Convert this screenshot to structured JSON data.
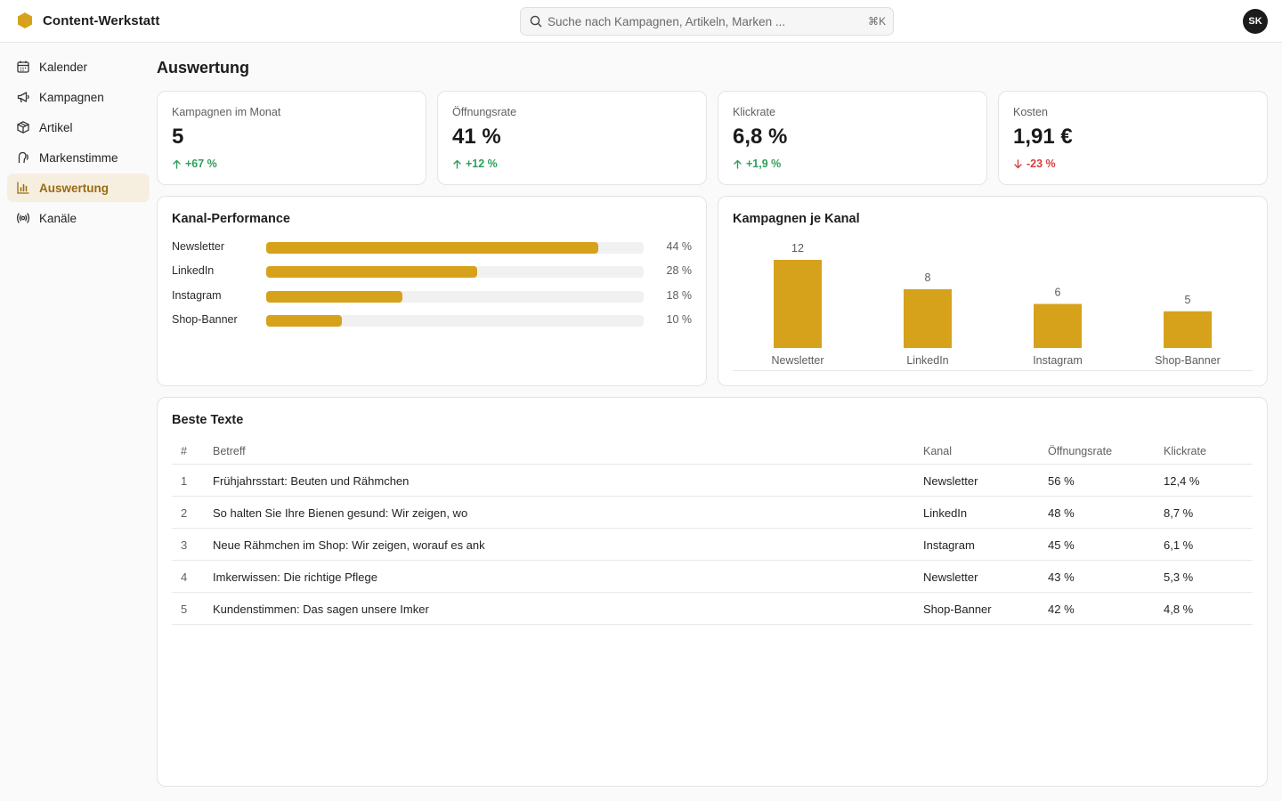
{
  "app": {
    "name": "Content-Werkstatt",
    "brand_color": "#d6a21c"
  },
  "search": {
    "placeholder": "Suche nach Kampagnen, Artikeln, Marken ...",
    "shortcut": "⌘K"
  },
  "user": {
    "initials": "SK"
  },
  "sidebar": {
    "items": [
      {
        "label": "Kalender",
        "icon": "calendar-icon",
        "active": false
      },
      {
        "label": "Kampagnen",
        "icon": "megaphone-icon",
        "active": false
      },
      {
        "label": "Artikel",
        "icon": "box-icon",
        "active": false
      },
      {
        "label": "Markenstimme",
        "icon": "voice-icon",
        "active": false
      },
      {
        "label": "Auswertung",
        "icon": "bar-chart-icon",
        "active": true
      },
      {
        "label": "Kanäle",
        "icon": "broadcast-icon",
        "active": false
      }
    ]
  },
  "page": {
    "title": "Auswertung"
  },
  "kpis": [
    {
      "label": "Kampagnen im Monat",
      "value": "5",
      "delta": "+67 %",
      "trend": "up"
    },
    {
      "label": "Öffnungsrate",
      "value": "41 %",
      "delta": "+12 %",
      "trend": "up"
    },
    {
      "label": "Klickrate",
      "value": "6,8 %",
      "delta": "+1,9 %",
      "trend": "up"
    },
    {
      "label": "Kosten",
      "value": "1,91 €",
      "delta": "-23 %",
      "trend": "down"
    }
  ],
  "performance": {
    "title": "Kanal-Performance",
    "rows": [
      {
        "name": "Newsletter",
        "value": 44,
        "label": "44 %",
        "fill_fraction": 0.88
      },
      {
        "name": "LinkedIn",
        "value": 28,
        "label": "28 %",
        "fill_fraction": 0.56
      },
      {
        "name": "Instagram",
        "value": 18,
        "label": "18 %",
        "fill_fraction": 0.36
      },
      {
        "name": "Shop-Banner",
        "value": 10,
        "label": "10 %",
        "fill_fraction": 0.2
      }
    ]
  },
  "chart_data": {
    "type": "bar",
    "title": "Kampagnen je Kanal",
    "categories": [
      "Newsletter",
      "LinkedIn",
      "Instagram",
      "Shop-Banner"
    ],
    "values": [
      12,
      8,
      6,
      5
    ],
    "ylim": [
      0,
      12
    ],
    "grid": false,
    "color": "#d6a21c"
  },
  "best_texts": {
    "title": "Beste Texte",
    "columns": [
      "#",
      "Betreff",
      "Kanal",
      "Öffnungsrate",
      "Klickrate"
    ],
    "rows": [
      {
        "rank": "1",
        "subject": "Frühjahrsstart: Beuten und Rähmchen",
        "channel": "Newsletter",
        "open_rate": "56 %",
        "click_rate": "12,4 %"
      },
      {
        "rank": "2",
        "subject": "So halten Sie Ihre Bienen gesund: Wir zeigen, wo",
        "channel": "LinkedIn",
        "open_rate": "48 %",
        "click_rate": "8,7 %"
      },
      {
        "rank": "3",
        "subject": "Neue Rähmchen im Shop: Wir zeigen, worauf es ank",
        "channel": "Instagram",
        "open_rate": "45 %",
        "click_rate": "6,1 %"
      },
      {
        "rank": "4",
        "subject": "Imkerwissen: Die richtige Pflege",
        "channel": "Newsletter",
        "open_rate": "43 %",
        "click_rate": "5,3 %"
      },
      {
        "rank": "5",
        "subject": "Kundenstimmen: Das sagen unsere Imker",
        "channel": "Shop-Banner",
        "open_rate": "42 %",
        "click_rate": "4,8 %"
      }
    ]
  }
}
